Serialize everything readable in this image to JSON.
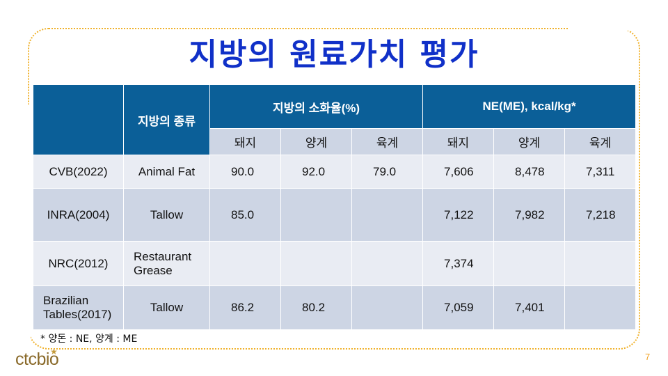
{
  "title": "지방의 원료가치 평가",
  "table": {
    "header": {
      "blank": "",
      "fat_type": "지방의 종류",
      "digestibility": "지방의 소화율(%)",
      "energy": "NE(ME), kcal/kg*"
    },
    "subheaders": [
      "돼지",
      "양계",
      "육계",
      "돼지",
      "양계",
      "육계"
    ],
    "rows": [
      {
        "source": "CVB(2022)",
        "fat": "Animal Fat",
        "d_pig": "90.0",
        "d_layer": "92.0",
        "d_broiler": "79.0",
        "e_pig": "7,606",
        "e_layer": "8,478",
        "e_broiler": "7,311"
      },
      {
        "source": "INRA(2004)",
        "fat": "Tallow",
        "d_pig": "85.0",
        "d_layer": "",
        "d_broiler": "",
        "e_pig": "7,122",
        "e_layer": "7,982",
        "e_broiler": "7,218"
      },
      {
        "source": "NRC(2012)",
        "fat": "Restaurant Grease",
        "d_pig": "",
        "d_layer": "",
        "d_broiler": "",
        "e_pig": "7,374",
        "e_layer": "",
        "e_broiler": ""
      },
      {
        "source": "Brazilian Tables(2017)",
        "fat": "Tallow",
        "d_pig": "86.2",
        "d_layer": "80.2",
        "d_broiler": "",
        "e_pig": "7,059",
        "e_layer": "7,401",
        "e_broiler": ""
      }
    ]
  },
  "footnote": "* 양돈 : NE, 양계 : ME",
  "logo": {
    "text": "ctcbio",
    "star": "★"
  },
  "page_number": "7",
  "colors": {
    "title": "#1030c8",
    "header": "#0b5f98",
    "row_light": "#e9ecf3",
    "row_dark": "#cdd5e4",
    "frame": "#f0b12a",
    "logo": "#8a6a2a"
  }
}
